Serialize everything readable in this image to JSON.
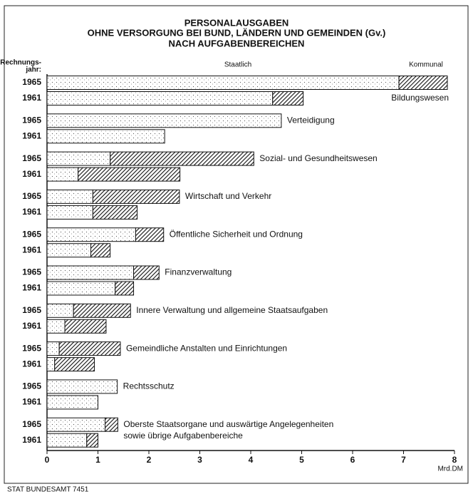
{
  "chart_data": {
    "type": "stacked-barh",
    "title": [
      "PERSONALAUSGABEN",
      "OHNE VERSORGUNG BEI BUND, LÄNDERN UND GEMEINDEN (Gv.)",
      "NACH AUFGABENBEREICHEN"
    ],
    "y_label": [
      "Rechnungs-",
      "jahr:"
    ],
    "x_label": "Mrd.DM",
    "footer": "STAT BUNDESAMT 7451",
    "years": [
      "1965",
      "1961"
    ],
    "categories": [
      "Bildungswesen",
      "Verteidigung",
      "Sozial- und Gesundheitswesen",
      "Wirtschaft und Verkehr",
      "Öffentliche Sicherheit und Ordnung",
      "Finanzverwaltung",
      "Innere Verwaltung und allgemeine Staatsaufgaben",
      "Gemeindliche Anstalten und Einrichtungen",
      "Rechtsschutz",
      [
        "Oberste Staatsorgane und auswärtige Angelegenheiten",
        "sowie übrige Aufgabenbereiche"
      ]
    ],
    "series": [
      {
        "name": "Staatlich",
        "pattern": "dots",
        "values": [
          [
            6.91,
            4.43
          ],
          [
            4.6,
            2.31
          ],
          [
            1.24,
            0.61
          ],
          [
            0.9,
            0.9
          ],
          [
            1.74,
            0.86
          ],
          [
            1.7,
            1.34
          ],
          [
            0.52,
            0.35
          ],
          [
            0.24,
            0.15
          ],
          [
            1.38,
            1.0
          ],
          [
            1.14,
            0.78
          ]
        ]
      },
      {
        "name": "Kommunal",
        "pattern": "hatch",
        "values": [
          [
            0.95,
            0.6
          ],
          [
            0,
            0
          ],
          [
            2.82,
            2.0
          ],
          [
            1.7,
            0.87
          ],
          [
            0.55,
            0.38
          ],
          [
            0.5,
            0.36
          ],
          [
            1.12,
            0.81
          ],
          [
            1.2,
            0.78
          ],
          [
            0,
            0
          ],
          [
            0.25,
            0.22
          ]
        ]
      }
    ],
    "xlim": [
      0,
      8
    ],
    "xticks": [
      0,
      1,
      2,
      3,
      4,
      5,
      6,
      7,
      8
    ]
  }
}
